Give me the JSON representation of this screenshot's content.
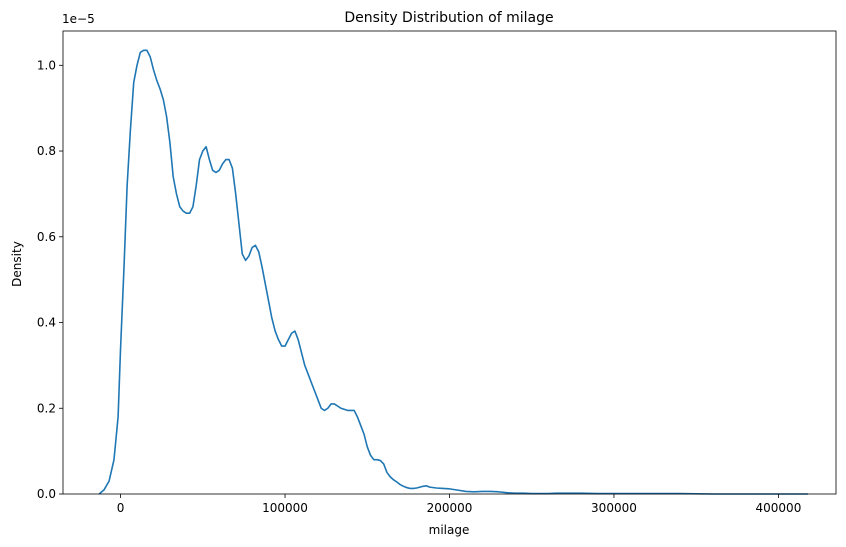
{
  "chart_data": {
    "type": "line",
    "title": "Density Distribution of milage",
    "xlabel": "milage",
    "ylabel": "Density",
    "y_offset_label": "1e−5",
    "xlim": [
      -35000,
      435000
    ],
    "ylim": [
      0,
      1.08
    ],
    "xticks": [
      0,
      100000,
      200000,
      300000,
      400000
    ],
    "xtick_labels": [
      "0",
      "100000",
      "200000",
      "300000",
      "400000"
    ],
    "yticks": [
      0,
      0.2,
      0.4,
      0.6,
      0.8,
      1.0
    ],
    "ytick_labels": [
      "0.0",
      "0.2",
      "0.4",
      "0.6",
      "0.8",
      "1.0"
    ],
    "grid": false,
    "legend": "none",
    "series": [
      {
        "color": "#1f77b4",
        "x": [
          -13000,
          -10000,
          -7000,
          -4000,
          -1500,
          0,
          2000,
          4000,
          6000,
          8000,
          10000,
          12000,
          14000,
          16000,
          18000,
          20000,
          22000,
          24000,
          26000,
          28000,
          30000,
          32000,
          34000,
          36000,
          38000,
          40000,
          42000,
          44000,
          46000,
          48000,
          50000,
          52000,
          54000,
          56000,
          58000,
          60000,
          62000,
          64000,
          66000,
          68000,
          70000,
          72000,
          74000,
          76000,
          78000,
          80000,
          82000,
          84000,
          86000,
          88000,
          90000,
          92000,
          94000,
          96000,
          98000,
          100000,
          102000,
          104000,
          106000,
          108000,
          110000,
          112000,
          114000,
          116000,
          118000,
          120000,
          122000,
          124000,
          126000,
          128000,
          130000,
          134000,
          138000,
          142000,
          144000,
          146000,
          148000,
          150000,
          152000,
          154000,
          156000,
          158000,
          160000,
          162000,
          164000,
          166000,
          168000,
          170000,
          172000,
          174000,
          176000,
          178000,
          180000,
          182000,
          184000,
          186000,
          188000,
          192000,
          196000,
          200000,
          205000,
          210000,
          215000,
          220000,
          225000,
          230000,
          235000,
          240000,
          245000,
          250000,
          255000,
          260000,
          265000,
          270000,
          275000,
          280000,
          290000,
          300000,
          320000,
          330000,
          335000,
          340000,
          360000,
          380000,
          395000,
          400000,
          410000,
          418000
        ],
        "y": [
          0.0,
          0.01,
          0.03,
          0.08,
          0.18,
          0.34,
          0.52,
          0.72,
          0.85,
          0.96,
          1.0,
          1.03,
          1.035,
          1.035,
          1.02,
          0.99,
          0.965,
          0.945,
          0.92,
          0.88,
          0.82,
          0.74,
          0.7,
          0.67,
          0.66,
          0.655,
          0.655,
          0.67,
          0.72,
          0.78,
          0.8,
          0.81,
          0.78,
          0.755,
          0.75,
          0.755,
          0.77,
          0.78,
          0.78,
          0.76,
          0.7,
          0.63,
          0.56,
          0.545,
          0.555,
          0.575,
          0.58,
          0.565,
          0.53,
          0.49,
          0.45,
          0.41,
          0.38,
          0.36,
          0.345,
          0.345,
          0.36,
          0.375,
          0.38,
          0.36,
          0.33,
          0.3,
          0.28,
          0.26,
          0.24,
          0.22,
          0.2,
          0.195,
          0.2,
          0.21,
          0.21,
          0.2,
          0.195,
          0.195,
          0.18,
          0.16,
          0.14,
          0.11,
          0.09,
          0.08,
          0.08,
          0.078,
          0.07,
          0.05,
          0.04,
          0.033,
          0.028,
          0.022,
          0.018,
          0.015,
          0.013,
          0.013,
          0.014,
          0.016,
          0.018,
          0.019,
          0.016,
          0.014,
          0.013,
          0.012,
          0.009,
          0.006,
          0.005,
          0.006,
          0.006,
          0.005,
          0.003,
          0.002,
          0.002,
          0.001,
          0.001,
          0.001,
          0.002,
          0.002,
          0.002,
          0.002,
          0.001,
          0.001,
          0.001,
          0.001,
          0.001,
          0.001,
          0.0,
          0.0,
          0.0,
          0.0,
          0.0,
          0.0
        ]
      }
    ]
  }
}
